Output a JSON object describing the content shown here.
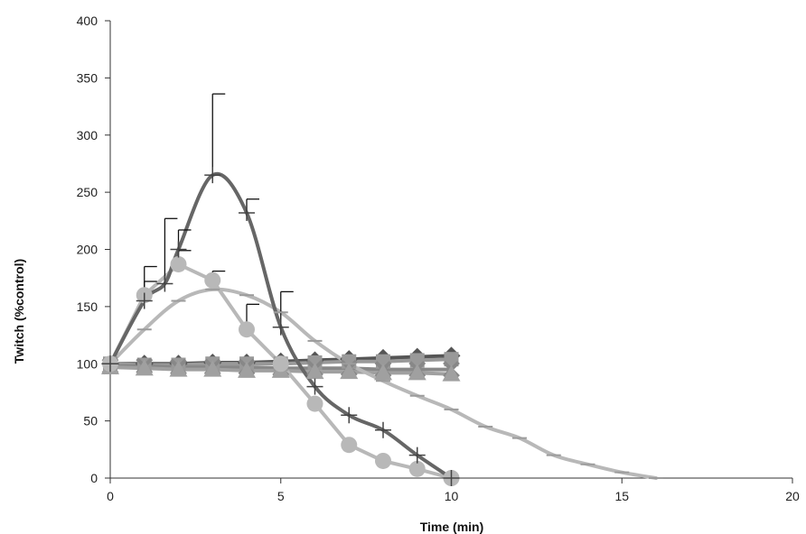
{
  "chart_data": {
    "type": "line",
    "title": "",
    "xlabel": "Time (min)",
    "ylabel": "Twitch (%control)",
    "xlim": [
      0,
      20
    ],
    "ylim": [
      0,
      400
    ],
    "xticks": [
      0,
      5,
      10,
      15,
      20
    ],
    "yticks": [
      0,
      50,
      100,
      150,
      200,
      250,
      300,
      350,
      400
    ],
    "grid": false,
    "legend": "none",
    "series": [
      {
        "marker": "plus",
        "color": "#666666",
        "smooth": true,
        "x": [
          0,
          1,
          1.6,
          2,
          3,
          4,
          5,
          6,
          7,
          8,
          9,
          10
        ],
        "y": [
          100,
          155,
          170,
          200,
          265,
          232,
          132,
          80,
          55,
          42,
          20,
          0
        ],
        "yerr_upper": [
          0,
          30,
          57,
          17,
          71,
          12,
          31,
          0,
          0,
          0,
          0,
          0
        ]
      },
      {
        "marker": "circle",
        "color": "#b8b8b8",
        "smooth": false,
        "x": [
          0,
          1,
          2,
          3,
          4,
          5,
          6,
          7,
          8,
          9,
          10
        ],
        "y": [
          100,
          160,
          187,
          173,
          130,
          100,
          65,
          29,
          15,
          8,
          0
        ],
        "yerr_upper": [
          0,
          12,
          12,
          8,
          22,
          0,
          0,
          0,
          0,
          0,
          0
        ]
      },
      {
        "marker": "dash",
        "color": "#b8b8b8",
        "smooth": true,
        "x": [
          0,
          1,
          2,
          3,
          4,
          5,
          6,
          7,
          8,
          9,
          10,
          11,
          12,
          13,
          14,
          15,
          16
        ],
        "y": [
          100,
          130,
          155,
          165,
          160,
          145,
          120,
          100,
          85,
          72,
          60,
          45,
          35,
          20,
          12,
          5,
          0
        ]
      },
      {
        "marker": "diamond",
        "color": "#555555",
        "smooth": false,
        "x": [
          0,
          1,
          2,
          3,
          4,
          5,
          6,
          7,
          8,
          9,
          10
        ],
        "y": [
          100,
          100,
          100,
          101,
          101,
          102,
          103,
          104,
          105,
          106,
          107
        ]
      },
      {
        "marker": "square",
        "color": "#999999",
        "smooth": false,
        "x": [
          0,
          1,
          2,
          3,
          4,
          5,
          6,
          7,
          8,
          9,
          10
        ],
        "y": [
          100,
          99,
          99,
          100,
          100,
          100,
          101,
          102,
          102,
          103,
          104
        ]
      },
      {
        "marker": "x",
        "color": "#888888",
        "smooth": false,
        "x": [
          0,
          1,
          2,
          3,
          4,
          5,
          6,
          7,
          8,
          9,
          10
        ],
        "y": [
          98,
          98,
          97,
          97,
          97,
          96,
          96,
          96,
          95,
          95,
          95
        ]
      },
      {
        "marker": "triangle",
        "color": "#a0a0a0",
        "smooth": false,
        "x": [
          0,
          1,
          2,
          3,
          4,
          5,
          6,
          7,
          8,
          9,
          10
        ],
        "y": [
          97,
          96,
          95,
          95,
          94,
          94,
          93,
          93,
          92,
          92,
          91
        ]
      }
    ]
  }
}
